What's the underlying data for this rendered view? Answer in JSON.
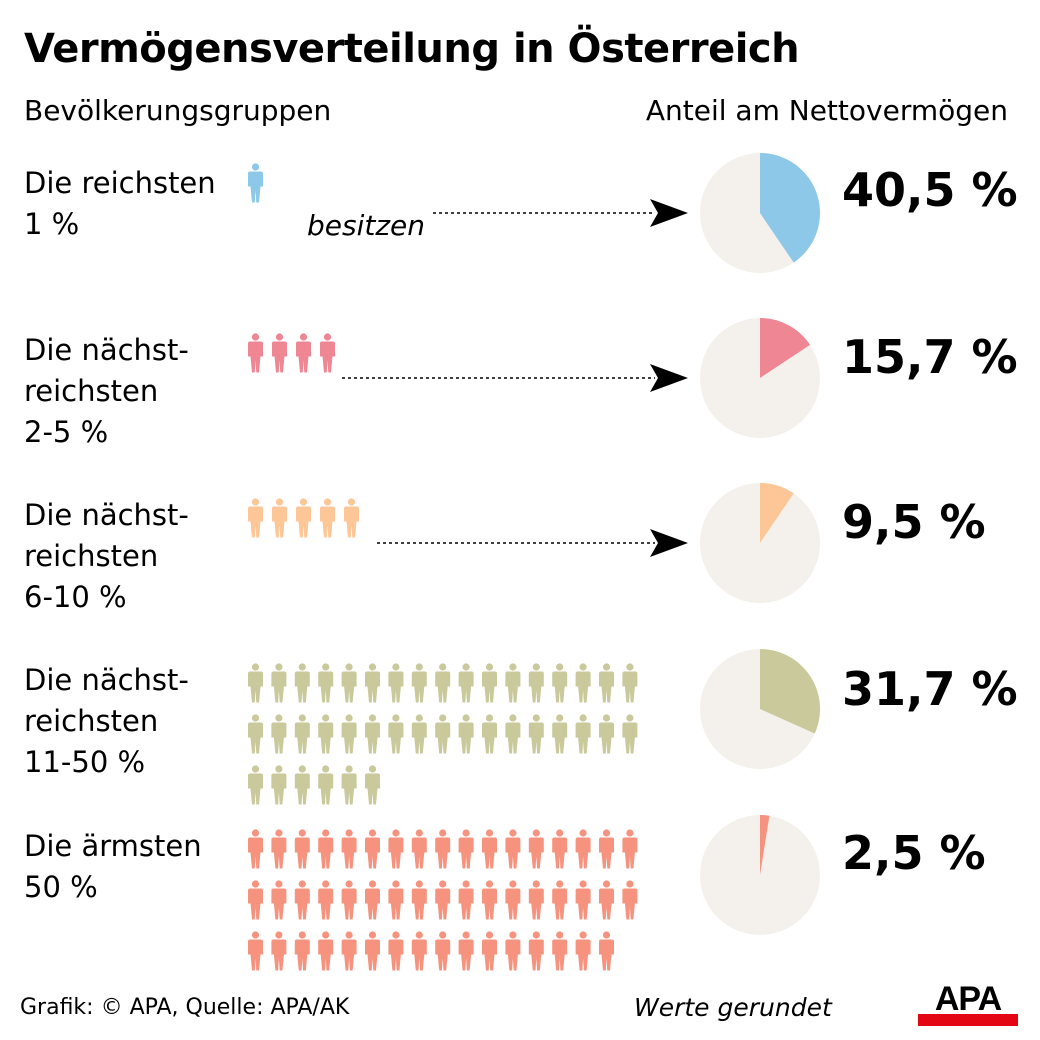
{
  "title": "Vermögensverteilung in Österreich",
  "header_left": "Bevölkerungsgruppen",
  "header_right": "Anteil am Nettovermögen",
  "annotation": "besitzen",
  "footer_source": "Grafik: © APA, Quelle: APA/AK",
  "footer_note": "Werte gerundet",
  "logo_text": "APA",
  "colors": {
    "pie_background": "#f4f1ec",
    "logo_red": "#e30613"
  },
  "chart_data": {
    "type": "pie",
    "title": "Vermögensverteilung in Österreich",
    "series": [
      {
        "label_lines": [
          "Die reichsten",
          "1 %"
        ],
        "value": 40.5,
        "value_label": "40,5 %",
        "people": 1,
        "color": "#8ec8e8"
      },
      {
        "label_lines": [
          "Die nächst-",
          "reichsten",
          "2-5 %"
        ],
        "value": 15.7,
        "value_label": "15,7 %",
        "people": 4,
        "color": "#ef8693"
      },
      {
        "label_lines": [
          "Die nächst-",
          "reichsten",
          "6-10 %"
        ],
        "value": 9.5,
        "value_label": "9,5 %",
        "people": 5,
        "color": "#fdc696"
      },
      {
        "label_lines": [
          "Die nächst-",
          "reichsten",
          "11-50 %"
        ],
        "value": 31.7,
        "value_label": "31,7 %",
        "people": 40,
        "color": "#c9c99c"
      },
      {
        "label_lines": [
          "Die ärmsten",
          "50 %"
        ],
        "value": 2.5,
        "value_label": "2,5 %",
        "people": 50,
        "color": "#f6937f"
      }
    ]
  }
}
